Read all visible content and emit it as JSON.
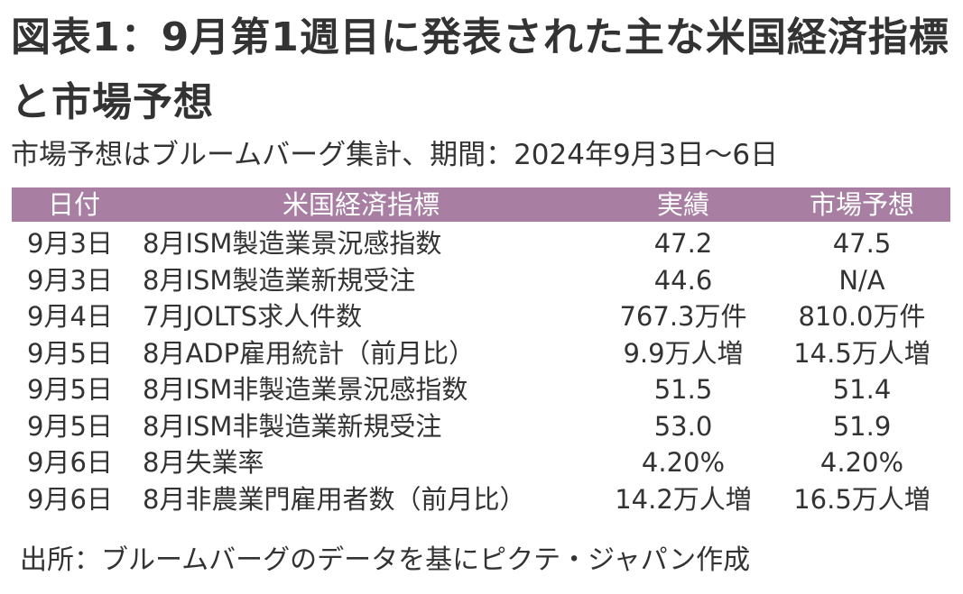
{
  "title": "図表1：9月第1週目に発表された主な米国経済指標と市場予想",
  "subtitle": "市場予想はブルームバーグ集計、期間：2024年9月3日～6日",
  "table": {
    "header": [
      "日付",
      "米国経済指標",
      "実績",
      "市場予想"
    ],
    "rows": [
      [
        "9月3日",
        "8月ISM製造業景況感指数",
        "47.2",
        "47.5"
      ],
      [
        "9月3日",
        "8月ISM製造業新規受注",
        "44.6",
        "N/A"
      ],
      [
        "9月4日",
        "7月JOLTS求人件数",
        "767.3万件",
        "810.0万件"
      ],
      [
        "9月5日",
        "8月ADP雇用統計（前月比）",
        "9.9万人増",
        "14.5万人増"
      ],
      [
        "9月5日",
        "8月ISM非製造業景況感指数",
        "51.5",
        "51.4"
      ],
      [
        "9月5日",
        "8月ISM非製造業新規受注",
        "53.0",
        "51.9"
      ],
      [
        "9月6日",
        "8月失業率",
        "4.20%",
        "4.20%"
      ],
      [
        "9月6日",
        "8月非農業門雇用者数（前月比）",
        "14.2万人増",
        "16.5万人増"
      ]
    ]
  },
  "source": "出所：ブルームバーグのデータを基にピクテ・ジャパン作成"
}
